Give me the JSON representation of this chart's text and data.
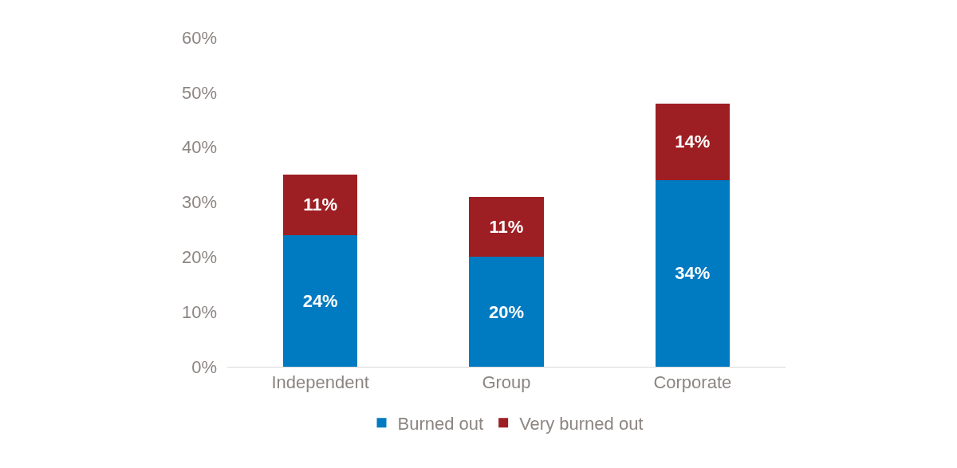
{
  "chart_data": {
    "type": "bar",
    "stacked": true,
    "categories": [
      "Independent",
      "Group",
      "Corporate"
    ],
    "series": [
      {
        "name": "Burned out",
        "color": "#007ac1",
        "values": [
          24,
          20,
          34
        ],
        "value_labels": [
          "24%",
          "20%",
          "34%"
        ]
      },
      {
        "name": "Very burned out",
        "color": "#9e1f23",
        "values": [
          11,
          11,
          14
        ],
        "value_labels": [
          "11%",
          "11%",
          "14%"
        ]
      }
    ],
    "ylim": [
      0,
      60
    ],
    "yticks": [
      {
        "value": 0,
        "label": "0%"
      },
      {
        "value": 10,
        "label": "10%"
      },
      {
        "value": 20,
        "label": "20%"
      },
      {
        "value": 30,
        "label": "30%"
      },
      {
        "value": 40,
        "label": "40%"
      },
      {
        "value": 50,
        "label": "50%"
      },
      {
        "value": 60,
        "label": "60%"
      }
    ],
    "legend": "bottom"
  }
}
